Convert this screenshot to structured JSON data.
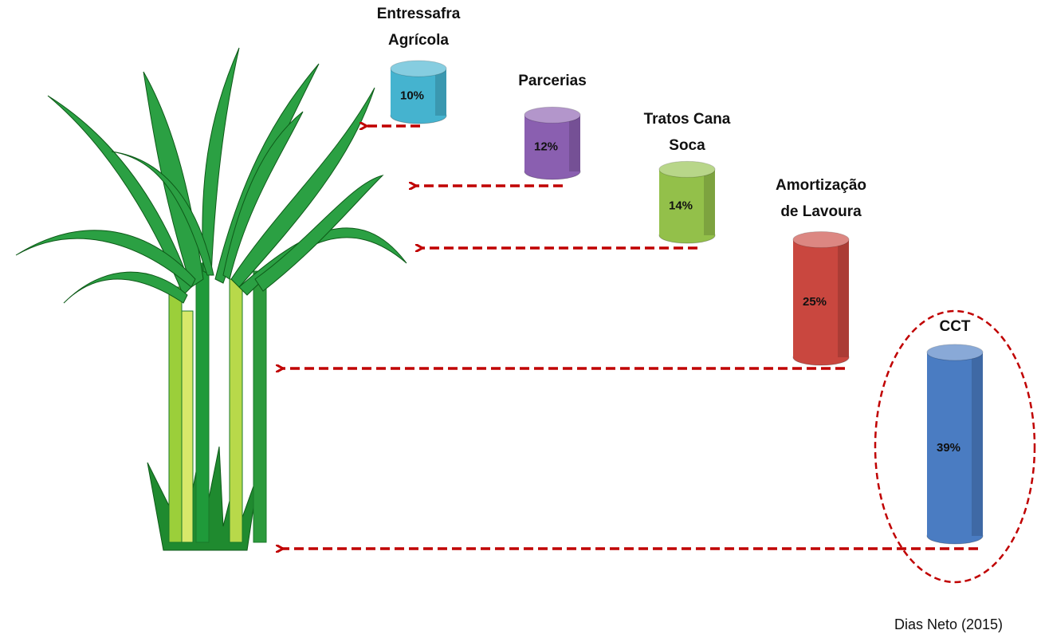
{
  "chart_data": {
    "type": "bar",
    "categories": [
      [
        "Entressafra",
        "Agrícola"
      ],
      [
        "Parcerias"
      ],
      [
        "Tratos Cana",
        "Soca"
      ],
      [
        "Amortização",
        "de Lavoura"
      ],
      [
        "CCT"
      ]
    ],
    "values": [
      10,
      12,
      14,
      25,
      39
    ],
    "value_labels": [
      "10%",
      "12%",
      "14%",
      "25%",
      "39%"
    ],
    "colors": [
      "#45b3cf",
      "#8a5fb0",
      "#93c04a",
      "#c9473f",
      "#4a7cc2"
    ],
    "source": "Dias Neto (2015)"
  }
}
